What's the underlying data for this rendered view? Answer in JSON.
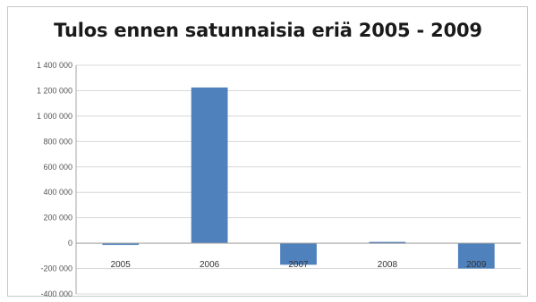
{
  "chart_data": {
    "type": "bar",
    "title": "Tulos ennen satunnaisia eriä 2005 - 2009",
    "xlabel": "",
    "ylabel": "",
    "categories": [
      "2005",
      "2006",
      "2007",
      "2008",
      "2009"
    ],
    "values": [
      -10000,
      1225000,
      -170000,
      10000,
      -200000
    ],
    "ylim": [
      -400000,
      1400000
    ],
    "yticks": [
      -400000,
      -200000,
      0,
      200000,
      400000,
      600000,
      800000,
      1000000,
      1200000,
      1400000
    ],
    "ytick_labels": [
      "-400 000",
      "-200 000",
      "0",
      "200 000",
      "400 000",
      "600 000",
      "800 000",
      "1 000 000",
      "1 200 000",
      "1 400 000"
    ],
    "grid": true,
    "legend": "none",
    "colors": {
      "bar": "#4f81bd",
      "grid": "#d9d9d9",
      "axis": "#a6a6a6"
    }
  }
}
